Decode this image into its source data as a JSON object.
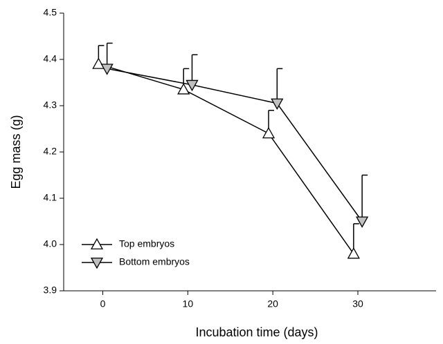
{
  "chart_data": {
    "type": "line",
    "xlabel": "Incubation time (days)",
    "ylabel": "Egg mass (g)",
    "xlim": [
      -4.6,
      39.2
    ],
    "xticks": [
      0,
      10,
      20,
      30
    ],
    "ylim": [
      3.9,
      4.5
    ],
    "yticks": [
      {
        "value": 3.9,
        "label": "3.9"
      },
      {
        "value": 4,
        "label": "4.0"
      },
      {
        "value": 4.1,
        "label": "4.1"
      },
      {
        "value": 4.2,
        "label": "4.2"
      },
      {
        "value": 4.3,
        "label": "4.3"
      },
      {
        "value": 4.4,
        "label": "4.4"
      },
      {
        "value": 4.5,
        "label": "4.5"
      }
    ],
    "legend": "lower left",
    "series": [
      {
        "name": "Top embryos",
        "marker": "triangle-up",
        "color": "#ffffff",
        "x": [
          -0.5,
          9.5,
          19.5,
          29.5
        ],
        "values": [
          4.39,
          4.335,
          4.24,
          3.98
        ],
        "errors": [
          0.04,
          0.045,
          0.05,
          0.065
        ]
      },
      {
        "name": "Bottom embryos",
        "marker": "triangle-down",
        "color": "#c0c0c0",
        "x": [
          0.5,
          10.5,
          20.5,
          30.5
        ],
        "values": [
          4.38,
          4.345,
          4.305,
          4.05
        ],
        "errors": [
          0.055,
          0.065,
          0.075,
          0.1
        ]
      }
    ]
  }
}
